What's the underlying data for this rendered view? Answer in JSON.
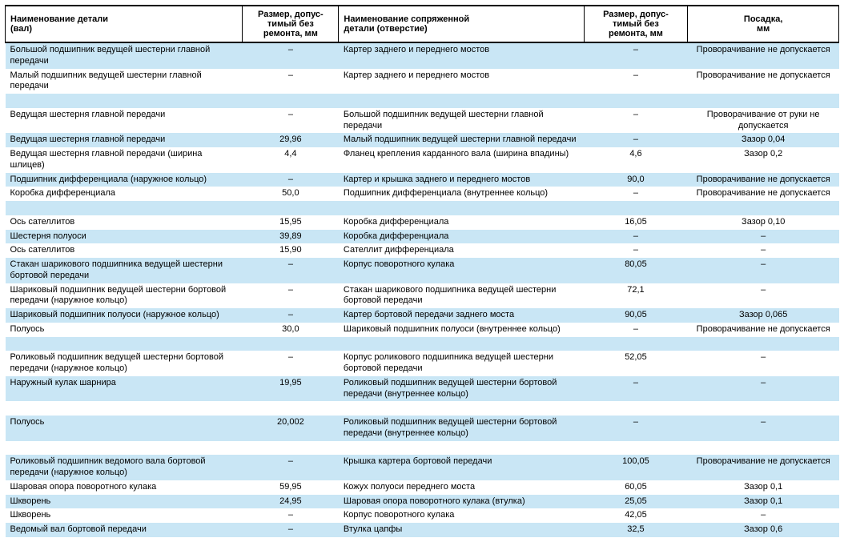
{
  "columns": [
    "Наименование детали\n(вал)",
    "Размер, допус-\nтимый без\nремонта, мм",
    "Наименование сопряженной\nдетали (отверстие)",
    "Размер, допус-\nтимый без\nремонта, мм",
    "Посадка,\nмм"
  ],
  "colors": {
    "band_a": "#c9e6f5",
    "band_b": "#ffffff",
    "border": "#000000"
  },
  "rows": [
    {
      "band": "a",
      "c1": "Большой подшипник ведущей шестерни главной передачи",
      "c2": "–",
      "c3": "Картер заднего и переднего мостов",
      "c4": "–",
      "c5": "Проворачивание не допускается"
    },
    {
      "band": "b",
      "c1": "Малый подшипник ведущей шестерни главной передачи",
      "c2": "–",
      "c3": "Картер заднего и переднего мостов",
      "c4": "–",
      "c5": "Проворачивание не допускается"
    },
    {
      "band": "a",
      "c1": "",
      "c2": "",
      "c3": "",
      "c4": "",
      "c5": ""
    },
    {
      "band": "b",
      "c1": "Ведущая шестерня главной передачи",
      "c2": "–",
      "c3": "Большой подшипник ведущей шестерни главной передачи",
      "c4": "–",
      "c5": "Проворачивание от руки не допускается"
    },
    {
      "band": "a",
      "c1": "Ведущая шестерня главной передачи",
      "c2": "29,96",
      "c3": "Малый подшипник ведущей шестерни главной передачи",
      "c4": "–",
      "c5": "Зазор 0,04"
    },
    {
      "band": "b",
      "c1": "Ведущая шестерня главной передачи (ширина шлицев)",
      "c2": "4,4",
      "c3": "Фланец крепления карданного вала (ширина впадины)",
      "c4": "4,6",
      "c5": "Зазор 0,2"
    },
    {
      "band": "a",
      "c1": "Подшипник дифференциала (наружное кольцо)",
      "c2": "–",
      "c3": "Картер и крышка заднего и переднего мостов",
      "c4": "90,0",
      "c5": "Проворачивание не допускается"
    },
    {
      "band": "b",
      "c1": "Коробка дифференциала",
      "c2": "50,0",
      "c3": "Подшипник дифференциала (внутреннее кольцо)",
      "c4": "–",
      "c5": "Проворачивание не допускается"
    },
    {
      "band": "a",
      "c1": "",
      "c2": "",
      "c3": "",
      "c4": "",
      "c5": ""
    },
    {
      "band": "b",
      "c1": "Ось сателлитов",
      "c2": "15,95",
      "c3": "Коробка дифференциала",
      "c4": "16,05",
      "c5": "Зазор 0,10"
    },
    {
      "band": "a",
      "c1": "Шестерня полуоси",
      "c2": "39,89",
      "c3": "Коробка дифференциала",
      "c4": "–",
      "c5": "–"
    },
    {
      "band": "b",
      "c1": "Ось сателлитов",
      "c2": "15,90",
      "c3": "Сателлит дифференциала",
      "c4": "–",
      "c5": "–"
    },
    {
      "band": "a",
      "c1": "Стакан шарикового подшипника ведущей шестерни бортовой передачи",
      "c2": "–",
      "c3": "Корпус поворотного кулака",
      "c4": "80,05",
      "c5": "–"
    },
    {
      "band": "b",
      "c1": "Шариковый подшипник ведущей шестерни бортовой передачи (наружное кольцо)",
      "c2": "–",
      "c3": "Стакан шарикового подшипника ведущей шестерни бортовой передачи",
      "c4": "72,1",
      "c5": "–"
    },
    {
      "band": "a",
      "c1": "Шариковый подшипник полуоси (наружное кольцо)",
      "c2": "–",
      "c3": "Картер бортовой передачи заднего моста",
      "c4": "90,05",
      "c5": "Зазор 0,065"
    },
    {
      "band": "b",
      "c1": "Полуось",
      "c2": "30,0",
      "c3": "Шариковый подшипник полуоси (внутреннее кольцо)",
      "c4": "–",
      "c5": "Проворачивание не допускается"
    },
    {
      "band": "a",
      "c1": "",
      "c2": "",
      "c3": "",
      "c4": "",
      "c5": ""
    },
    {
      "band": "b",
      "c1": "Роликовый подшипник ведущей шестерни бортовой передачи (наружное кольцо)",
      "c2": "–",
      "c3": "Корпус роликового подшипника ведущей шестерни бортовой передачи",
      "c4": "52,05",
      "c5": "–"
    },
    {
      "band": "a",
      "c1": "Наружный кулак шарнира",
      "c2": "19,95",
      "c3": "Роликовый подшипник ведущей шестерни бортовой передачи (внутреннее кольцо)",
      "c4": "–",
      "c5": "–"
    },
    {
      "band": "b",
      "c1": "",
      "c2": "",
      "c3": "",
      "c4": "",
      "c5": ""
    },
    {
      "band": "a",
      "c1": "Полуось",
      "c2": "20,002",
      "c3": "Роликовый подшипник ведущей шестерни бортовой передачи (внутреннее кольцо)",
      "c4": "–",
      "c5": "–"
    },
    {
      "band": "b",
      "c1": "",
      "c2": "",
      "c3": "",
      "c4": "",
      "c5": ""
    },
    {
      "band": "a",
      "c1": "Роликовый подшипник ведомого вала бортовой передачи (наружное кольцо)",
      "c2": "–",
      "c3": "Крышка картера бортовой передачи",
      "c4": "100,05",
      "c5": "Проворачивание не допускается"
    },
    {
      "band": "b",
      "c1": "Шаровая опора поворотного кулака",
      "c2": "59,95",
      "c3": "Кожух полуоси переднего моста",
      "c4": "60,05",
      "c5": "Зазор 0,1"
    },
    {
      "band": "a",
      "c1": "Шкворень",
      "c2": "24,95",
      "c3": "Шаровая опора поворотного кулака (втулка)",
      "c4": "25,05",
      "c5": "Зазор 0,1"
    },
    {
      "band": "b",
      "c1": "Шкворень",
      "c2": "–",
      "c3": "Корпус поворотного кулака",
      "c4": "42,05",
      "c5": "–"
    },
    {
      "band": "a",
      "c1": "Ведомый вал бортовой передачи",
      "c2": "–",
      "c3": "Втулка цапфы",
      "c4": "32,5",
      "c5": "Зазор 0,6"
    }
  ]
}
